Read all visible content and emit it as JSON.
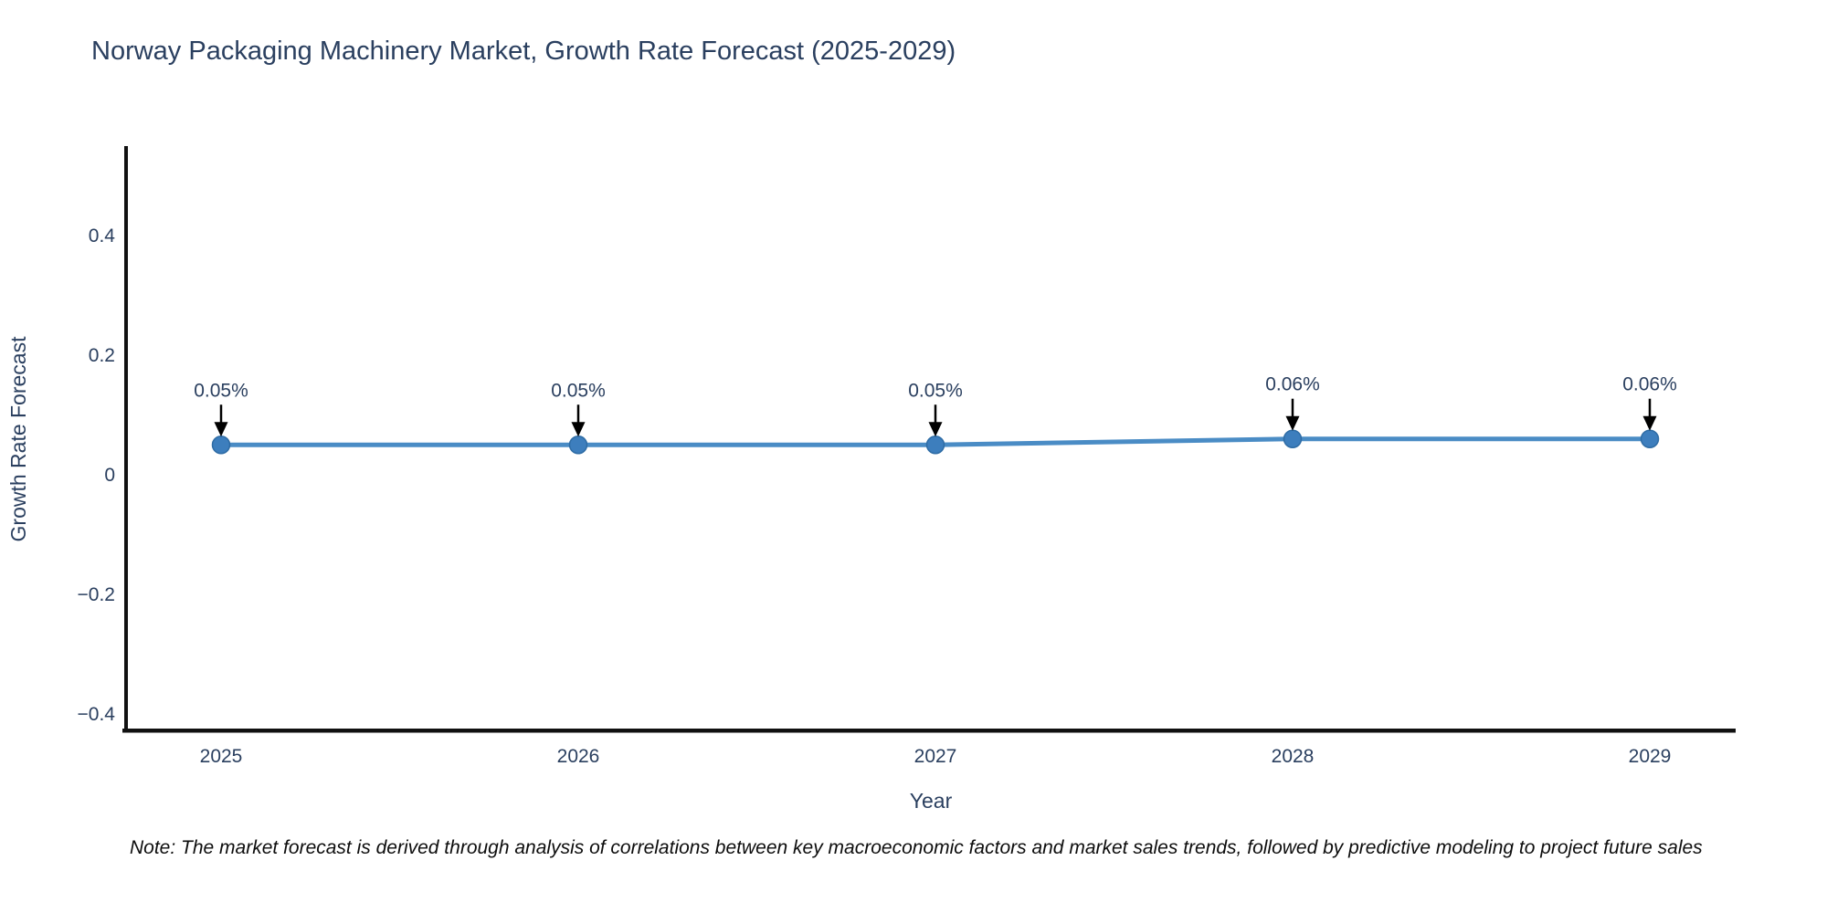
{
  "title": "Norway Packaging Machinery Market, Growth Rate Forecast (2025-2029)",
  "note": "Note: The market forecast is derived through analysis of correlations between key macroeconomic factors and market sales trends, followed by predictive modeling to project future sales",
  "chart_data": {
    "type": "line",
    "title": "Norway Packaging Machinery Market, Growth Rate Forecast (2025-2029)",
    "xlabel": "Year",
    "ylabel": "Growth Rate Forecast",
    "x": [
      2025,
      2026,
      2027,
      2028,
      2029
    ],
    "x_tick_labels": [
      "2025",
      "2026",
      "2027",
      "2028",
      "2029"
    ],
    "series": [
      {
        "name": "Growth Rate Forecast",
        "values": [
          0.05,
          0.05,
          0.05,
          0.06,
          0.06
        ]
      }
    ],
    "point_labels": [
      "0.05%",
      "0.05%",
      "0.05%",
      "0.06%",
      "0.06%"
    ],
    "yticks": [
      0.4,
      0.2,
      0,
      -0.2,
      -0.4
    ],
    "ytick_labels": [
      "0.4",
      "0.2",
      "0",
      "−0.2",
      "−0.4"
    ],
    "ylim": [
      -0.42,
      0.56
    ],
    "grid": false,
    "legend_position": "none",
    "annotations_have_arrows": true
  },
  "colors": {
    "line": "#4a8cc5",
    "marker_fill": "#3d7ebd",
    "marker_stroke": "#2e6ca5",
    "arrow": "#000000",
    "axis_spine": "#111111",
    "text": "#2a3f5f"
  }
}
